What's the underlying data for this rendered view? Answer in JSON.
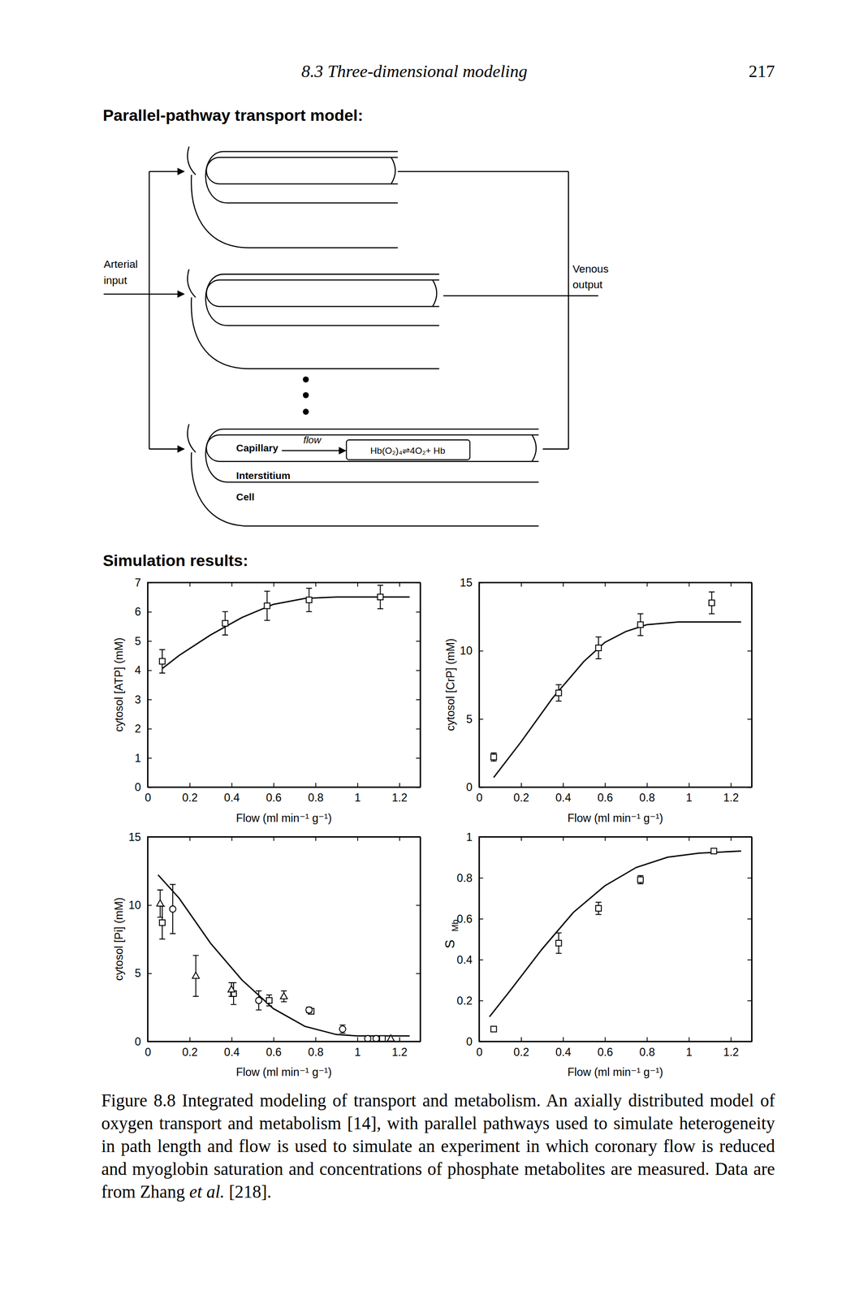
{
  "header": {
    "section": "8.3 Three-dimensional modeling",
    "page": "217"
  },
  "diagram": {
    "title": "Parallel-pathway transport model:",
    "input_label": [
      "Arterial",
      "input"
    ],
    "output_label": [
      "Venous",
      "output"
    ],
    "capillary": "Capillary",
    "flow": "flow",
    "reaction": "Hb(O₂)₄⇌4O₂+ Hb",
    "interstitium": "Interstitium",
    "cell": "Cell"
  },
  "results_title": "Simulation results:",
  "chart_data": [
    {
      "type": "scatter",
      "ylabel": "cytosol [ATP] (mM)",
      "xlabel": "Flow (ml min⁻¹ g⁻¹)",
      "xlim": [
        0,
        1.3
      ],
      "xticks": [
        0,
        0.2,
        0.4,
        0.6,
        0.8,
        1,
        1.2
      ],
      "ylim": [
        0,
        7
      ],
      "yticks": [
        0,
        1,
        2,
        3,
        4,
        5,
        6,
        7
      ],
      "series": [
        {
          "type": "line",
          "color": "#000000",
          "line_style": "solid",
          "x": [
            0.07,
            0.15,
            0.3,
            0.45,
            0.6,
            0.75,
            0.9,
            1.25
          ],
          "values": [
            4.05,
            4.5,
            5.2,
            5.8,
            6.25,
            6.45,
            6.5,
            6.5
          ]
        },
        {
          "type": "scatter",
          "marker": "square",
          "color": "#000000",
          "x": [
            0.07,
            0.37,
            0.57,
            0.77,
            1.11
          ],
          "values": [
            4.3,
            5.6,
            6.2,
            6.4,
            6.5
          ],
          "errors": [
            0.4,
            0.4,
            0.5,
            0.4,
            0.4
          ]
        }
      ]
    },
    {
      "type": "scatter",
      "ylabel": "cytosol [CrP] (mM)",
      "xlabel": "Flow (ml min⁻¹ g⁻¹)",
      "xlim": [
        0,
        1.3
      ],
      "xticks": [
        0,
        0.2,
        0.4,
        0.6,
        0.8,
        1,
        1.2
      ],
      "ylim": [
        0,
        15
      ],
      "yticks": [
        0,
        5,
        10,
        15
      ],
      "series": [
        {
          "type": "line",
          "color": "#000000",
          "line_style": "solid",
          "x": [
            0.07,
            0.2,
            0.35,
            0.5,
            0.6,
            0.7,
            0.8,
            0.95,
            1.25
          ],
          "values": [
            0.7,
            3.3,
            6.5,
            9.2,
            10.6,
            11.4,
            11.9,
            12.1,
            12.1
          ]
        },
        {
          "type": "scatter",
          "marker": "square",
          "color": "#000000",
          "x": [
            0.07,
            0.38,
            0.57,
            0.77,
            1.11
          ],
          "values": [
            2.2,
            6.9,
            10.2,
            11.9,
            13.5
          ],
          "errors": [
            0.3,
            0.6,
            0.8,
            0.8,
            0.8
          ]
        }
      ]
    },
    {
      "type": "scatter",
      "ylabel": "cytosol [Pi] (mM)",
      "xlabel": "Flow (ml min⁻¹ g⁻¹)",
      "xlim": [
        0,
        1.3
      ],
      "xticks": [
        0,
        0.2,
        0.4,
        0.6,
        0.8,
        1,
        1.2
      ],
      "ylim": [
        0,
        15
      ],
      "yticks": [
        0,
        5,
        10,
        15
      ],
      "series": [
        {
          "type": "line",
          "color": "#000000",
          "line_style": "solid",
          "x": [
            0.05,
            0.15,
            0.3,
            0.45,
            0.6,
            0.75,
            0.9,
            1.0,
            1.25
          ],
          "values": [
            12.2,
            10.5,
            7.2,
            4.5,
            2.4,
            1.1,
            0.5,
            0.4,
            0.4
          ]
        },
        {
          "type": "scatter",
          "marker": "square",
          "color": "#000000",
          "x": [
            0.07,
            0.41,
            0.58,
            0.78,
            1.12
          ],
          "values": [
            8.7,
            3.5,
            3.0,
            2.2,
            0.2
          ],
          "errors": [
            1.2,
            0.8,
            0.4,
            0.2,
            null
          ]
        },
        {
          "type": "scatter",
          "marker": "circle",
          "color": "#000000",
          "x": [
            0.12,
            0.53,
            0.77,
            0.93,
            1.05,
            1.09
          ],
          "values": [
            9.7,
            3.0,
            2.3,
            0.9,
            0.2,
            0.2
          ],
          "errors": [
            1.8,
            0.7,
            0.2,
            0.3,
            null,
            null
          ]
        },
        {
          "type": "scatter",
          "marker": "triangle",
          "color": "#000000",
          "x": [
            0.06,
            0.23,
            0.4,
            0.65,
            1.16
          ],
          "values": [
            10.1,
            4.8,
            3.8,
            3.3,
            0.2
          ],
          "errors": [
            1.0,
            1.5,
            0.5,
            0.4,
            null
          ]
        }
      ]
    },
    {
      "type": "scatter",
      "ylabel": "S",
      "ylabel_sub": "Mb",
      "xlabel": "Flow (ml min⁻¹ g⁻¹)",
      "xlim": [
        0,
        1.3
      ],
      "xticks": [
        0,
        0.2,
        0.4,
        0.6,
        0.8,
        1,
        1.2
      ],
      "ylim": [
        0,
        1
      ],
      "yticks": [
        0,
        0.2,
        0.4,
        0.6,
        0.8,
        1
      ],
      "series": [
        {
          "type": "line",
          "color": "#000000",
          "line_style": "solid",
          "x": [
            0.05,
            0.15,
            0.3,
            0.45,
            0.6,
            0.75,
            0.9,
            1.05,
            1.25
          ],
          "values": [
            0.12,
            0.25,
            0.45,
            0.63,
            0.76,
            0.85,
            0.9,
            0.92,
            0.93
          ]
        },
        {
          "type": "scatter",
          "marker": "square",
          "color": "#000000",
          "x": [
            0.07,
            0.38,
            0.57,
            0.77,
            1.12
          ],
          "values": [
            0.06,
            0.48,
            0.65,
            0.79,
            0.93
          ],
          "errors": [
            null,
            0.05,
            0.03,
            0.02,
            null
          ]
        }
      ]
    }
  ],
  "caption": [
    "Figure 8.8 Integrated modeling of transport and metabolism. An axially distributed model of oxygen transport and metabolism [14], with parallel pathways used to simulate heterogeneity in path length and flow is used to simulate an experiment in which coronary flow is reduced and myoglobin saturation and concentrations of phosphate metabolites are measured. Data are from Zhang ",
    "et al.",
    " [218]."
  ]
}
